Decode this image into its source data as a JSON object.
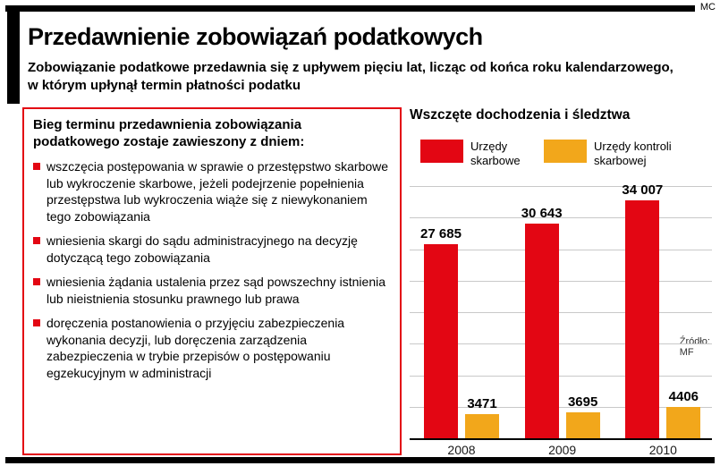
{
  "page": {
    "credit": "MC",
    "title": "Przedawnienie zobowiązań podatkowych",
    "subtitle": "Zobowiązanie podatkowe przedawnia się z upływem pięciu lat, licząc od końca roku kalendarzowego, w którym upłynął termin płatności podatku"
  },
  "info_box": {
    "heading": "Bieg terminu przedawnienia zobowiązania podatkowego zostaje zawieszony z dniem:",
    "items": [
      "wszczęcia postępowania w sprawie o przestępstwo skarbowe lub wykroczenie skarbowe, jeżeli podejrzenie popełnienia przestępstwa lub wykroczenia wiąże się z niewykonaniem tego zobowiązania",
      "wniesienia skargi do sądu administracyjnego na decyzję dotyczącą tego zobowiązania",
      "wniesienia żądania ustalenia przez sąd powszechny istnienia lub nieistnienia stosunku prawnego lub prawa",
      "doręczenia postanowienia o przyjęciu zabezpieczenia wykonania decyzji, lub doręczenia zarządzenia zabezpieczenia w trybie przepisów o postępowaniu egzekucyjnym w administracji"
    ]
  },
  "chart_data": {
    "type": "bar",
    "title": "Wszczęte dochodzenia i śledztwa",
    "categories": [
      "2008",
      "2009",
      "2010"
    ],
    "series": [
      {
        "name": "Urzędy skarbowe",
        "color": "#e30613",
        "values": [
          27685,
          30643,
          34007
        ],
        "labels": [
          "27 685",
          "30 643",
          "34 007"
        ]
      },
      {
        "name": "Urzędy kontroli skarbowej",
        "color": "#f2a71b",
        "values": [
          3471,
          3695,
          4406
        ],
        "labels": [
          "3471",
          "3695",
          "4406"
        ]
      }
    ],
    "ylim": [
      0,
      36000
    ],
    "grid_divisions": 8,
    "grid": true,
    "legend_position": "top",
    "source": "Źródło:\nMF"
  },
  "colors": {
    "accent_red": "#e30613",
    "accent_orange": "#f2a71b",
    "bar_black": "#000000"
  }
}
